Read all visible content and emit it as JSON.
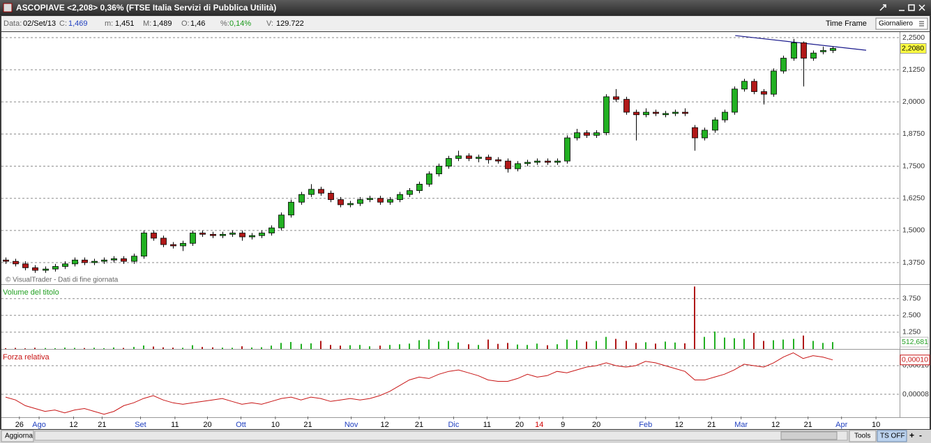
{
  "window": {
    "title": "ASCOPIAVE <2,208> 0,36%  (FTSE Italia Servizi di Pubblica Utilità)"
  },
  "info": {
    "date_label": "Data:",
    "date": "02/Set/13",
    "close_label": "C:",
    "close": "1,469",
    "min_label": "m:",
    "min": "1,451",
    "max_label": "M:",
    "max": "1,489",
    "open_label": "O:",
    "open": "1,46",
    "pct_label": "%:",
    "pct": "0,14%",
    "vol_label": "V:",
    "vol": "129.722",
    "time_frame_label": "Time Frame",
    "time_frame": "Giornaliero"
  },
  "footer": {
    "refresh": "Aggiorna",
    "tools": "Tools",
    "ts": "TS OFF"
  },
  "chart_data": [
    {
      "type": "candlestick",
      "watermark": "© VisualTrader - Dati di fine giornata",
      "last_value_label": "2,2080",
      "color_up": "#22b022",
      "color_down": "#b01818",
      "xlim": [
        -0.57,
        90.8
      ],
      "ylim": [
        1.2937,
        2.2717
      ],
      "yticks": [
        {
          "value": 1.375,
          "label": "1,3750"
        },
        {
          "value": 1.5,
          "label": "1,5000"
        },
        {
          "value": 1.625,
          "label": "1,6250"
        },
        {
          "value": 1.75,
          "label": "1,7500"
        },
        {
          "value": 1.875,
          "label": "1,8750"
        },
        {
          "value": 2.0,
          "label": "2,0000"
        },
        {
          "value": 2.125,
          "label": "2,1250"
        },
        {
          "value": 2.25,
          "label": "2,2500"
        }
      ],
      "xticks": [
        {
          "value": 1.4,
          "label": "26"
        },
        {
          "value": 3.4,
          "label": "Ago",
          "color": "#1f3fbf"
        },
        {
          "value": 6.9,
          "label": "12"
        },
        {
          "value": 9.8,
          "label": "21"
        },
        {
          "value": 13.7,
          "label": "Set",
          "color": "#1f3fbf"
        },
        {
          "value": 17.2,
          "label": "11"
        },
        {
          "value": 20.5,
          "label": "20"
        },
        {
          "value": 23.9,
          "label": "Ott",
          "color": "#1f3fbf"
        },
        {
          "value": 27.4,
          "label": "10"
        },
        {
          "value": 30.7,
          "label": "21"
        },
        {
          "value": 35.1,
          "label": "Nov",
          "color": "#1f3fbf"
        },
        {
          "value": 38.5,
          "label": "12"
        },
        {
          "value": 42.0,
          "label": "21"
        },
        {
          "value": 45.5,
          "label": "Dic",
          "color": "#1f3fbf"
        },
        {
          "value": 48.9,
          "label": "11"
        },
        {
          "value": 52.2,
          "label": "20"
        },
        {
          "value": 54.2,
          "label": "14",
          "color": "#d00000"
        },
        {
          "value": 56.6,
          "label": "9"
        },
        {
          "value": 60.0,
          "label": "20"
        },
        {
          "value": 65.0,
          "label": "Feb",
          "color": "#1f3fbf"
        },
        {
          "value": 68.4,
          "label": "12"
        },
        {
          "value": 71.7,
          "label": "21"
        },
        {
          "value": 74.7,
          "label": "Mar",
          "color": "#1f3fbf"
        },
        {
          "value": 78.2,
          "label": "12"
        },
        {
          "value": 81.5,
          "label": "21"
        },
        {
          "value": 84.9,
          "label": "Apr",
          "color": "#1f3fbf"
        },
        {
          "value": 88.4,
          "label": "10"
        }
      ],
      "trendline": {
        "x": [
          74.1,
          87.4
        ],
        "y": [
          2.258,
          2.201
        ],
        "color": "#1a1a8c"
      },
      "candles": [
        [
          1.385,
          1.395,
          1.37,
          1.38
        ],
        [
          1.38,
          1.39,
          1.36,
          1.37
        ],
        [
          1.37,
          1.38,
          1.345,
          1.355
        ],
        [
          1.355,
          1.365,
          1.335,
          1.345
        ],
        [
          1.345,
          1.36,
          1.335,
          1.35
        ],
        [
          1.35,
          1.37,
          1.34,
          1.36
        ],
        [
          1.36,
          1.38,
          1.35,
          1.37
        ],
        [
          1.37,
          1.395,
          1.36,
          1.385
        ],
        [
          1.385,
          1.395,
          1.365,
          1.375
        ],
        [
          1.375,
          1.39,
          1.365,
          1.38
        ],
        [
          1.38,
          1.395,
          1.37,
          1.385
        ],
        [
          1.385,
          1.4,
          1.375,
          1.39
        ],
        [
          1.39,
          1.4,
          1.37,
          1.38
        ],
        [
          1.38,
          1.41,
          1.37,
          1.4
        ],
        [
          1.4,
          1.5,
          1.39,
          1.49
        ],
        [
          1.49,
          1.5,
          1.46,
          1.47
        ],
        [
          1.47,
          1.48,
          1.435,
          1.445
        ],
        [
          1.445,
          1.455,
          1.43,
          1.44
        ],
        [
          1.44,
          1.46,
          1.42,
          1.45
        ],
        [
          1.45,
          1.5,
          1.44,
          1.49
        ],
        [
          1.49,
          1.5,
          1.475,
          1.485
        ],
        [
          1.485,
          1.495,
          1.47,
          1.48
        ],
        [
          1.48,
          1.495,
          1.47,
          1.485
        ],
        [
          1.485,
          1.5,
          1.475,
          1.49
        ],
        [
          1.49,
          1.5,
          1.46,
          1.475
        ],
        [
          1.475,
          1.49,
          1.465,
          1.48
        ],
        [
          1.48,
          1.5,
          1.47,
          1.49
        ],
        [
          1.49,
          1.52,
          1.48,
          1.51
        ],
        [
          1.51,
          1.57,
          1.5,
          1.56
        ],
        [
          1.56,
          1.62,
          1.55,
          1.61
        ],
        [
          1.61,
          1.65,
          1.6,
          1.64
        ],
        [
          1.64,
          1.68,
          1.63,
          1.66
        ],
        [
          1.66,
          1.67,
          1.635,
          1.645
        ],
        [
          1.645,
          1.655,
          1.61,
          1.62
        ],
        [
          1.62,
          1.63,
          1.59,
          1.6
        ],
        [
          1.6,
          1.615,
          1.59,
          1.605
        ],
        [
          1.605,
          1.63,
          1.595,
          1.62
        ],
        [
          1.62,
          1.635,
          1.61,
          1.625
        ],
        [
          1.625,
          1.635,
          1.6,
          1.61
        ],
        [
          1.61,
          1.63,
          1.6,
          1.62
        ],
        [
          1.62,
          1.65,
          1.61,
          1.64
        ],
        [
          1.64,
          1.665,
          1.63,
          1.655
        ],
        [
          1.655,
          1.69,
          1.645,
          1.68
        ],
        [
          1.68,
          1.73,
          1.67,
          1.72
        ],
        [
          1.72,
          1.76,
          1.71,
          1.75
        ],
        [
          1.75,
          1.79,
          1.74,
          1.78
        ],
        [
          1.78,
          1.81,
          1.77,
          1.79
        ],
        [
          1.79,
          1.8,
          1.77,
          1.78
        ],
        [
          1.78,
          1.795,
          1.765,
          1.785
        ],
        [
          1.785,
          1.795,
          1.76,
          1.775
        ],
        [
          1.775,
          1.785,
          1.76,
          1.77
        ],
        [
          1.77,
          1.78,
          1.725,
          1.74
        ],
        [
          1.74,
          1.77,
          1.73,
          1.76
        ],
        [
          1.76,
          1.775,
          1.75,
          1.765
        ],
        [
          1.765,
          1.78,
          1.755,
          1.77
        ],
        [
          1.77,
          1.78,
          1.755,
          1.765
        ],
        [
          1.765,
          1.78,
          1.755,
          1.77
        ],
        [
          1.77,
          1.87,
          1.76,
          1.86
        ],
        [
          1.86,
          1.895,
          1.85,
          1.88
        ],
        [
          1.88,
          1.89,
          1.86,
          1.87
        ],
        [
          1.87,
          1.89,
          1.86,
          1.88
        ],
        [
          1.88,
          2.03,
          1.87,
          2.02
        ],
        [
          2.02,
          2.05,
          2.0,
          2.01
        ],
        [
          2.01,
          2.02,
          1.95,
          1.96
        ],
        [
          1.96,
          1.97,
          1.85,
          1.95
        ],
        [
          1.95,
          1.975,
          1.94,
          1.96
        ],
        [
          1.96,
          1.97,
          1.945,
          1.955
        ],
        [
          1.95,
          1.965,
          1.94,
          1.955
        ],
        [
          1.955,
          1.97,
          1.945,
          1.96
        ],
        [
          1.96,
          1.975,
          1.945,
          1.955
        ],
        [
          1.9,
          1.91,
          1.81,
          1.86
        ],
        [
          1.86,
          1.9,
          1.85,
          1.89
        ],
        [
          1.89,
          1.94,
          1.88,
          1.93
        ],
        [
          1.93,
          1.97,
          1.92,
          1.96
        ],
        [
          1.96,
          2.06,
          1.95,
          2.05
        ],
        [
          2.05,
          2.09,
          2.04,
          2.08
        ],
        [
          2.08,
          2.09,
          2.03,
          2.04
        ],
        [
          2.04,
          2.05,
          1.99,
          2.03
        ],
        [
          2.03,
          2.13,
          2.02,
          2.12
        ],
        [
          2.12,
          2.18,
          2.11,
          2.17
        ],
        [
          2.17,
          2.245,
          2.16,
          2.23
        ],
        [
          2.23,
          2.235,
          2.06,
          2.17
        ],
        [
          2.17,
          2.2,
          2.16,
          2.19
        ],
        [
          2.195,
          2.215,
          2.185,
          2.2
        ],
        [
          2.2,
          2.215,
          2.19,
          2.208
        ]
      ]
    },
    {
      "type": "bar",
      "title": "Volume del titolo",
      "title_color": "#22a022",
      "last_value_label": "512,681",
      "ylim": [
        0,
        4720
      ],
      "yticks": [
        {
          "value": 1250,
          "label": "1.250"
        },
        {
          "value": 2500,
          "label": "2.500"
        },
        {
          "value": 3750,
          "label": "3.750"
        }
      ],
      "values": [
        60,
        80,
        50,
        90,
        70,
        60,
        100,
        80,
        70,
        90,
        60,
        110,
        80,
        150,
        260,
        180,
        120,
        100,
        90,
        280,
        150,
        120,
        100,
        90,
        200,
        110,
        130,
        250,
        450,
        520,
        380,
        420,
        600,
        300,
        250,
        280,
        300,
        200,
        250,
        300,
        350,
        400,
        650,
        700,
        550,
        600,
        480,
        350,
        300,
        700,
        380,
        450,
        330,
        300,
        400,
        280,
        350,
        700,
        650,
        550,
        600,
        900,
        750,
        600,
        450,
        500,
        400,
        550,
        480,
        420,
        4650,
        900,
        1300,
        850,
        800,
        750,
        1200,
        600,
        650,
        700,
        750,
        1000,
        600,
        450,
        512.681
      ]
    },
    {
      "type": "line",
      "title": "Forza relativa",
      "color": "#c81414",
      "last_value_label": "0,00010",
      "ylim": [
        6.44e-05,
        0.0001107
      ],
      "yticks": [
        {
          "value": 8e-05,
          "label": "0,00008"
        },
        {
          "value": 0.0001,
          "label": "0,00010"
        }
      ],
      "values": [
        7.8e-05,
        7.6e-05,
        7.2e-05,
        7e-05,
        6.8e-05,
        6.9e-05,
        6.7e-05,
        6.9e-05,
        7e-05,
        6.8e-05,
        6.6e-05,
        6.8e-05,
        7.2e-05,
        7.4e-05,
        7.7e-05,
        7.9e-05,
        7.6e-05,
        7.4e-05,
        7.3e-05,
        7.4e-05,
        7.5e-05,
        7.6e-05,
        7.7e-05,
        7.5e-05,
        7.3e-05,
        7.4e-05,
        7.3e-05,
        7.5e-05,
        7.7e-05,
        7.8e-05,
        7.6e-05,
        7.8e-05,
        7.7e-05,
        7.5e-05,
        7.6e-05,
        7.7e-05,
        7.6e-05,
        7.7e-05,
        7.9e-05,
        8.2e-05,
        8.6e-05,
        9e-05,
        9.2e-05,
        9.1e-05,
        9.4e-05,
        9.6e-05,
        9.7e-05,
        9.5e-05,
        9.3e-05,
        9e-05,
        8.9e-05,
        8.9e-05,
        9.1e-05,
        9.4e-05,
        9.2e-05,
        9.3e-05,
        9.6e-05,
        9.5e-05,
        9.7e-05,
        9.9e-05,
        0.0001,
        0.000102,
        0.0001,
        9.9e-05,
        0.0001,
        0.000103,
        0.000102,
        0.0001,
        9.8e-05,
        9.6e-05,
        9e-05,
        9e-05,
        9.2e-05,
        9.4e-05,
        9.7e-05,
        0.000101,
        0.0001,
        9.9e-05,
        0.000102,
        0.000106,
        0.000109,
        0.000105,
        0.000107,
        0.000106,
        0.000104
      ]
    }
  ]
}
